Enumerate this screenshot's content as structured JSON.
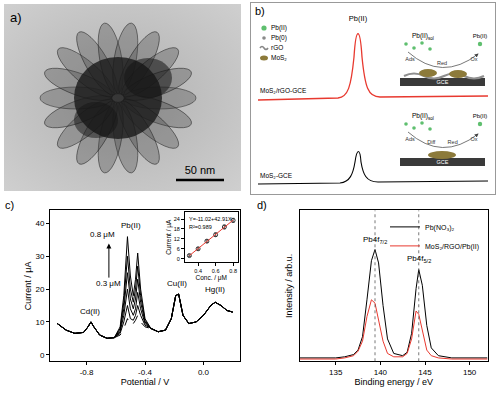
{
  "chart_data": [
    {
      "type": "line",
      "label": "c)",
      "x_label": "Potential / V",
      "y_label": "Current / μA",
      "color": "#000000",
      "grid": false,
      "x": [
        -1.0,
        -0.94,
        -0.88,
        -0.82,
        -0.79,
        -0.77,
        -0.75,
        -0.71,
        -0.66,
        -0.61,
        -0.57,
        -0.545,
        -0.52,
        -0.5,
        -0.48,
        -0.465,
        -0.45,
        -0.43,
        -0.4,
        -0.36,
        -0.31,
        -0.26,
        -0.22,
        -0.19,
        -0.17,
        -0.14,
        -0.1,
        -0.05,
        0.0,
        0.05,
        0.08,
        0.12,
        0.16,
        0.2
      ],
      "series": [
        {
          "line_style": "dashed",
          "values": [
            9.5,
            7.5,
            6.5,
            6.8,
            8.5,
            10,
            8.5,
            6,
            5,
            5.2,
            6,
            8,
            11,
            9,
            9.5,
            10.5,
            12,
            10,
            8.5,
            8,
            7,
            7.5,
            11,
            18,
            18.5,
            12,
            9.5,
            10,
            12,
            15,
            16,
            15,
            13.5,
            13
          ]
        },
        {
          "line_style": "solid",
          "values": [
            9.5,
            7.5,
            6.5,
            6.8,
            8.5,
            10,
            8.5,
            6,
            5,
            5.2,
            6.5,
            10,
            15,
            11,
            10.5,
            12,
            15,
            12,
            9,
            8,
            7,
            7.5,
            11,
            18,
            18.5,
            12,
            9.5,
            10,
            12,
            15,
            16,
            15,
            13.5,
            13
          ]
        },
        {
          "line_style": "solid",
          "values": [
            9.5,
            7.5,
            6.5,
            6.8,
            8.5,
            10,
            8.5,
            6,
            5,
            5.2,
            7,
            12,
            20,
            14,
            12,
            14,
            19,
            14,
            9.5,
            8,
            7,
            7.5,
            11,
            18,
            18.5,
            12,
            9.5,
            10,
            12,
            15,
            16,
            15,
            13.5,
            13
          ]
        },
        {
          "line_style": "solid",
          "values": [
            9.5,
            7.5,
            6.5,
            6.8,
            8.5,
            10,
            8.5,
            6,
            5,
            5.2,
            7.5,
            14,
            25,
            17,
            14,
            17,
            23,
            16,
            10,
            8,
            7,
            7.5,
            11,
            18,
            18.5,
            12,
            9.5,
            10,
            12,
            15,
            16,
            15,
            13.5,
            13
          ]
        },
        {
          "line_style": "solid",
          "values": [
            9.5,
            7.5,
            6.5,
            6.8,
            8.5,
            10,
            8.5,
            6,
            5,
            5.2,
            8,
            16,
            30,
            20,
            16,
            20,
            27,
            18,
            10.5,
            8,
            7,
            7.5,
            11,
            18,
            18.5,
            12,
            9.5,
            10,
            12,
            15,
            16,
            15,
            13.5,
            13
          ]
        },
        {
          "line_style": "solid",
          "values": [
            9.5,
            7.5,
            6.5,
            6.8,
            8.5,
            10,
            8.5,
            6,
            5,
            5.2,
            8.5,
            18,
            36,
            24,
            18,
            23,
            31,
            20,
            11,
            8,
            7,
            7.5,
            11,
            18,
            18.5,
            12,
            9.5,
            10,
            12,
            15,
            16,
            15,
            13.5,
            13
          ]
        }
      ],
      "xlim": [
        -1.05,
        0.25
      ],
      "xticks": [
        -0.8,
        -0.4,
        {
          "value": 0,
          "label": "0.0"
        }
      ],
      "ylim": [
        -2,
        44
      ],
      "yticks": [
        0,
        10,
        20,
        30,
        40
      ],
      "annotations": [
        "Cd(II)",
        "Pb(II)",
        "Cu(II)",
        "Hg(II)",
        "0.8 μM",
        "0.3 μM"
      ]
    },
    {
      "type": "scatter",
      "x_label": "Conc. / μM",
      "y_label": "Current / μA",
      "grid": false,
      "x": [
        0.3,
        0.4,
        0.5,
        0.6,
        0.7,
        0.8
      ],
      "series": [
        {
          "type": "scatter",
          "marker": "circle",
          "color": "#333333",
          "values": [
            1.9,
            6.0,
            10.6,
            14.5,
            19.2,
            23.2
          ],
          "errors": [
            0.5,
            0.7,
            0.8,
            1.0,
            1.1,
            1.2
          ]
        },
        {
          "type": "line",
          "line_style": "solid",
          "color": "#e8392f",
          "values": [
            1.85,
            6.14,
            10.44,
            14.73,
            19.02,
            23.31
          ]
        }
      ],
      "xlim": [
        0.25,
        0.85
      ],
      "xticks": [
        0.4,
        0.6,
        0.8
      ],
      "ylim": [
        -2,
        28
      ],
      "yticks": [
        0,
        6,
        12,
        18,
        24
      ],
      "annotations": [
        "Y=-11.02+42.91X",
        "R²=0.989"
      ]
    },
    {
      "type": "line",
      "label": "d)",
      "x_label": "Binding energy / eV",
      "y_label": "Intensity / arb.u.",
      "grid": false,
      "tick_labels": "x",
      "legend": "top right",
      "x": [
        131,
        133,
        135,
        136,
        137,
        137.5,
        138,
        138.5,
        139,
        139.4,
        139.8,
        140.3,
        140.8,
        141.5,
        142.5,
        143,
        143.5,
        144,
        144.3,
        144.7,
        145.2,
        145.7,
        146.5,
        148,
        150,
        152
      ],
      "series": [
        {
          "name": "Pb(NO₃)₂",
          "color": "#000000",
          "line_style": "solid",
          "values": [
            0.03,
            0.03,
            0.03,
            0.04,
            0.06,
            0.1,
            0.22,
            0.55,
            0.9,
            1.0,
            0.88,
            0.5,
            0.2,
            0.07,
            0.05,
            0.08,
            0.25,
            0.65,
            0.82,
            0.68,
            0.32,
            0.12,
            0.05,
            0.03,
            0.03,
            0.03
          ]
        },
        {
          "name": "MoS₂/RGO/Pb(II)",
          "color": "#e8392f",
          "line_style": "solid",
          "values": [
            0.02,
            0.02,
            0.02,
            0.03,
            0.05,
            0.09,
            0.18,
            0.4,
            0.55,
            0.52,
            0.38,
            0.18,
            0.07,
            0.04,
            0.04,
            0.07,
            0.2,
            0.45,
            0.42,
            0.28,
            0.1,
            0.05,
            0.03,
            0.02,
            0.02,
            0.02
          ]
        }
      ],
      "xlim": [
        131,
        152
      ],
      "xticks": [
        135,
        140,
        145,
        150
      ],
      "ylim": [
        0,
        1.35
      ],
      "peak_lines": [
        139.4,
        144.3
      ],
      "annotations": [
        {
          "text": "Pb4f",
          "sub": "7/2"
        },
        {
          "text": "Pb4f",
          "sub": "5/2"
        }
      ]
    }
  ],
  "panel_a": {
    "label": "a)",
    "scale_bar": "50 nm"
  },
  "panel_b": {
    "label": "b)",
    "peak_label": "Pb(II)",
    "legend": [
      "Pb(II)",
      "Pb(0)",
      "rGO",
      "MoS₂"
    ],
    "curves": [
      {
        "label": "MoS₂/rGO-GCE",
        "color": "#e8392f"
      },
      {
        "label": "MoS₂-GCE",
        "color": "#000000"
      }
    ],
    "schemes": [
      {
        "solution": {
          "text": "Pb(II)",
          "sub": "sol"
        },
        "steps": [
          "Ads",
          "Red",
          "Ox"
        ],
        "product": "Pb(II)",
        "electrode": "GCE"
      },
      {
        "solution": {
          "text": "Pb(II)",
          "sub": "sol"
        },
        "steps": [
          "Ads",
          "Diff",
          "Red",
          "Ox"
        ],
        "product": "Pb(II)",
        "electrode": "GCE"
      }
    ]
  }
}
